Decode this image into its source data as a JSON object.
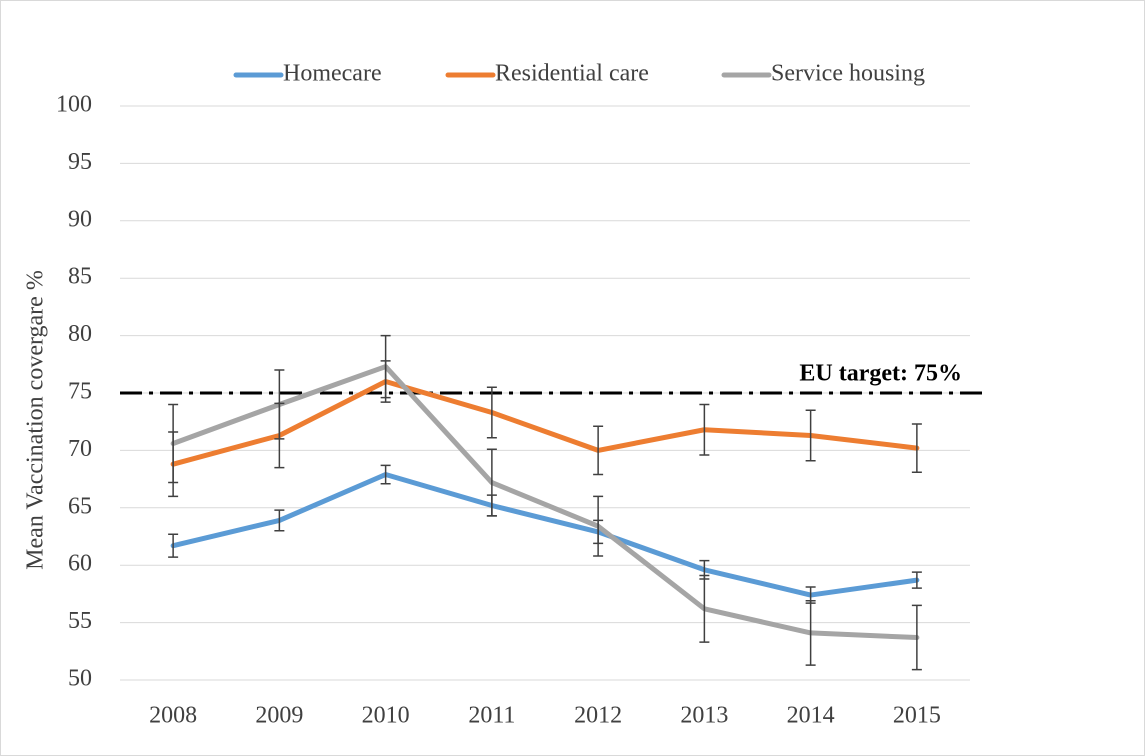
{
  "chart_data": {
    "type": "line",
    "y_label": "Mean Vaccination covergare %",
    "categories": [
      "2008",
      "2009",
      "2010",
      "2011",
      "2012",
      "2013",
      "2014",
      "2015"
    ],
    "series": [
      {
        "name": "Homecare",
        "color": "#5b9bd5",
        "values": [
          61.7,
          63.9,
          67.9,
          65.2,
          62.9,
          59.6,
          57.4,
          58.7
        ],
        "errors": [
          1.0,
          0.9,
          0.8,
          0.9,
          1.0,
          0.8,
          0.7,
          0.7
        ]
      },
      {
        "name": "Residential care",
        "color": "#ed7d31",
        "values": [
          68.8,
          71.3,
          76.0,
          73.3,
          70.0,
          71.8,
          71.3,
          70.2
        ],
        "errors": [
          2.8,
          2.8,
          1.8,
          2.2,
          2.1,
          2.2,
          2.2,
          2.1
        ]
      },
      {
        "name": "Service housing",
        "color": "#a5a5a5",
        "values": [
          70.6,
          74.0,
          77.3,
          67.2,
          63.4,
          56.2,
          54.1,
          53.7
        ],
        "errors": [
          3.4,
          3.0,
          2.7,
          2.9,
          2.6,
          2.9,
          2.8,
          2.8
        ]
      }
    ],
    "reference_line": {
      "value": 75,
      "label": "EU target: 75%",
      "color": "#000000"
    },
    "ylim": [
      50,
      100
    ],
    "yticks": [
      50,
      55,
      60,
      65,
      70,
      75,
      80,
      85,
      90,
      95,
      100
    ],
    "grid": true,
    "legend": "top"
  }
}
